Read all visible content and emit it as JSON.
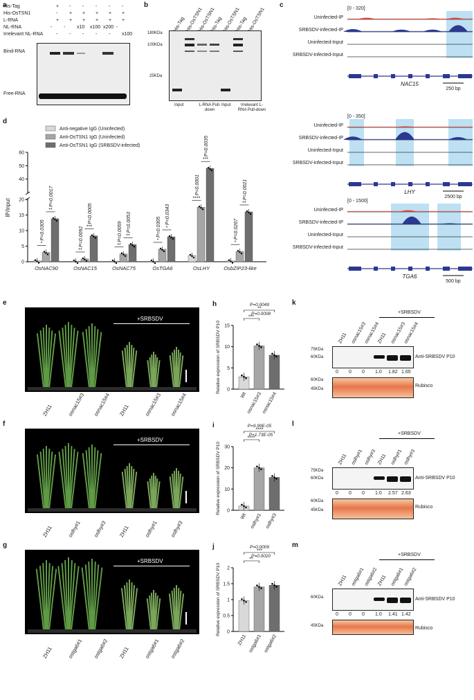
{
  "panel_a": {
    "label": "a",
    "rows": [
      "His-Tag",
      "His-OsTSN1",
      "L-RNA",
      "NL-RNA",
      "Irrelevant NL-RNA"
    ],
    "marks": [
      [
        "+",
        "-",
        "-",
        "-",
        "-",
        "-"
      ],
      [
        "-",
        "+",
        "+",
        "+",
        "+",
        "+"
      ],
      [
        "+",
        "+",
        "+",
        "+",
        "+",
        "+"
      ],
      [
        "-",
        "-",
        "x10",
        "x100",
        "x200",
        "-"
      ],
      [
        "-",
        "-",
        "-",
        "-",
        "-",
        "x100"
      ]
    ],
    "bind_label": "Bind-RNA",
    "free_label": "Free-RNA"
  },
  "panel_b": {
    "label": "b",
    "lanes": [
      "His-Tag",
      "His-OsTSN1",
      "His-OsTSN1",
      "His-Tag",
      "His-OsTSN1",
      "His-Tag",
      "His-OsTSN1"
    ],
    "markers": [
      "180KDa",
      "100KDa",
      "25KDa"
    ],
    "groups": [
      "Input",
      "L-RNA Pull-down",
      "Input",
      "Irrelevant L-RNA Pull-down"
    ]
  },
  "panel_c": {
    "label": "c",
    "tracks": [
      "Uninfected-IP",
      "SRBSDV-infected-IP",
      "Uninfected-Input",
      "SRBSDV-infected-Input"
    ],
    "genes": [
      {
        "range": "[0 - 320]",
        "name": "NAC15",
        "scale": "250 bp"
      },
      {
        "range": "[0 - 350]",
        "name": "LHY",
        "scale": "2500 bp"
      },
      {
        "range": "[0 - 1500]",
        "name": "TGA6",
        "scale": "500 bp"
      }
    ]
  },
  "chart_data": [
    {
      "panel": "d",
      "type": "bar",
      "ylabel": "IP/Input",
      "categories": [
        "OsNAC90",
        "OsNAC15",
        "OsNAC75",
        "OsTGA6",
        "OsLHY",
        "OsbZIP23-like"
      ],
      "series": [
        {
          "name": "Anti-negative IgG (Uninfected)",
          "color": "#d9d9d9",
          "values": [
            0.3,
            0.2,
            0.2,
            0.2,
            2.0,
            0.3
          ]
        },
        {
          "name": "Anti-OsTSN1 IgG (Uninfected)",
          "color": "#a6a6a6",
          "values": [
            3.0,
            0.9,
            2.5,
            4.0,
            17.5,
            3.3
          ]
        },
        {
          "name": "Anti-OsTSN1 IgG (SRBSDV-infected)",
          "color": "#6e6e6e",
          "values": [
            13.8,
            8.3,
            5.5,
            8.0,
            48.0,
            16.0
          ]
        }
      ],
      "pvalues": [
        [
          "P=0.0305",
          "P=0.0017"
        ],
        [
          "P=0.0092",
          "P=0.0005"
        ],
        [
          "P=0.0059",
          "P=0.0053"
        ],
        [
          "P=0.0305",
          "P=0.0343"
        ],
        [
          "P<0.0001",
          "P=0.0035"
        ],
        [
          "P=0.0267",
          "P=0.0021"
        ]
      ],
      "stars": [
        [
          "*",
          "**"
        ],
        [
          "**",
          "***"
        ],
        [
          "**",
          "**"
        ],
        [
          "*",
          "*"
        ],
        [
          "****",
          "***"
        ],
        [
          "*",
          "**"
        ]
      ],
      "yticks_low": [
        0,
        5,
        10,
        15,
        20
      ],
      "yticks_high": [
        40,
        50,
        60
      ],
      "axis_break": true
    },
    {
      "panel": "h",
      "type": "bar",
      "ylabel": "Relative expression of SRBSDV P10",
      "categories": [
        "Wt",
        "osnac15#3",
        "osnac15#4"
      ],
      "values": [
        2.9,
        10.2,
        8.0
      ],
      "colors": [
        "#d9d9d9",
        "#a6a6a6",
        "#6e6e6e"
      ],
      "ylim": [
        0,
        15
      ],
      "yticks": [
        0,
        5,
        10,
        15
      ],
      "pvalues": [
        "P=0.0049",
        "P=0.0008"
      ],
      "stars": [
        "**",
        "***"
      ]
    },
    {
      "panel": "i",
      "type": "bar",
      "ylabel": "Relative expression of SRBSDV P10",
      "categories": [
        "Wt",
        "oslhy#1",
        "oslhy#3"
      ],
      "values": [
        2.0,
        20.0,
        15.5
      ],
      "colors": [
        "#d9d9d9",
        "#a6a6a6",
        "#6e6e6e"
      ],
      "ylim": [
        0,
        30
      ],
      "yticks": [
        0,
        10,
        20,
        30
      ],
      "pvalues": [
        "P=9.99E-05",
        "P=1.73E-05"
      ],
      "stars": [
        "****",
        "****"
      ]
    },
    {
      "panel": "j",
      "type": "bar",
      "ylabel": "Relative expression of SRBSDV P10",
      "categories": [
        "ZH11",
        "ostga6#1",
        "ostga6#2"
      ],
      "values": [
        0.97,
        1.4,
        1.45
      ],
      "colors": [
        "#d9d9d9",
        "#a6a6a6",
        "#6e6e6e"
      ],
      "ylim": [
        0,
        2.0
      ],
      "yticks": [
        0.0,
        0.5,
        1.0,
        1.5,
        2.0
      ],
      "pvalues": [
        "P=0.0009",
        "P=0.0020"
      ],
      "stars": [
        "***",
        "**"
      ]
    }
  ],
  "plants": [
    {
      "label": "e",
      "treatment": "+SRBSDV",
      "lanes": [
        "ZH11",
        "osnac15#3",
        "osnac15#4",
        "ZH11",
        "osnac15#3",
        "osnac15#4"
      ]
    },
    {
      "label": "f",
      "treatment": "+SRBSDV",
      "lanes": [
        "ZH11",
        "oslhy#1",
        "oslhy#3",
        "ZH11",
        "oslhy#1",
        "oslhy#3"
      ]
    },
    {
      "label": "g",
      "treatment": "+SRBSDV",
      "lanes": [
        "ZH11",
        "ostga6#1",
        "ostga6#2",
        "ZH11",
        "ostga6#1",
        "ostga6#2"
      ]
    }
  ],
  "blots": [
    {
      "label": "k",
      "treatment": "+SRBSDV",
      "lanes": [
        "ZH11",
        "osnac15#3",
        "osnac15#4",
        "ZH11",
        "osnac15#3",
        "osnac15#4"
      ],
      "markers_top": [
        "75KDa",
        "60KDa"
      ],
      "markers_bottom": [
        "60KDa",
        "45KDa"
      ],
      "values": [
        "0",
        "0",
        "0",
        "1.0",
        "1.82",
        "1.65"
      ],
      "antibody": "Anti-SRBSDV P10",
      "loading": "Rubisco"
    },
    {
      "label": "l",
      "treatment": "+SRBSDV",
      "lanes": [
        "ZH11",
        "oslhy#1",
        "oslhy#3",
        "ZH11",
        "oslhy#1",
        "oslhy#3"
      ],
      "markers_top": [
        "75KDa",
        "60KDa"
      ],
      "markers_bottom": [
        "60KDa",
        "45KDa"
      ],
      "values": [
        "0",
        "0",
        "0",
        "1.0",
        "2.57",
        "2.63"
      ],
      "antibody": "Anti-SRBSDV P10",
      "loading": "Rubisco"
    },
    {
      "label": "m",
      "treatment": "+SRBSDV",
      "lanes": [
        "ZH11",
        "ostga6#1",
        "ostga6#2",
        "ZH11",
        "ostga6#1",
        "ostga6#2"
      ],
      "markers_top": [
        "60KDa"
      ],
      "markers_bottom": [
        "45KDa"
      ],
      "values": [
        "0",
        "0",
        "0",
        "1.0",
        "1.41",
        "1.42"
      ],
      "antibody": "Anti-SRBSDV P10",
      "loading": "Rubisco"
    }
  ]
}
